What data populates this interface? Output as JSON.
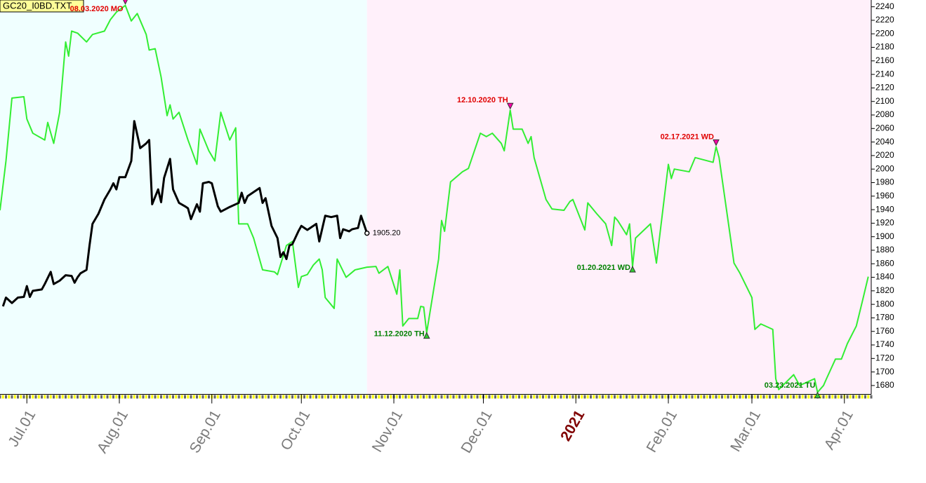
{
  "chart_data": {
    "type": "line",
    "title": "GC20_I0BD.TXT",
    "xlim": [
      "2020-06-22",
      "2021-04-10"
    ],
    "ylim": [
      1668,
      2250
    ],
    "xticks": [
      {
        "value": "2020-07-01",
        "label": "Jul.01"
      },
      {
        "value": "2020-08-01",
        "label": "Aug.01"
      },
      {
        "value": "2020-09-01",
        "label": "Sep.01"
      },
      {
        "value": "2020-10-01",
        "label": "Oct.01"
      },
      {
        "value": "2020-11-01",
        "label": "Nov.01"
      },
      {
        "value": "2020-12-01",
        "label": "Dec.01"
      },
      {
        "value": "2021-01-01",
        "label": "2021",
        "color": "#800000"
      },
      {
        "value": "2021-02-01",
        "label": "Feb.01"
      },
      {
        "value": "2021-03-01",
        "label": "Mar.01"
      },
      {
        "value": "2021-04-01",
        "label": "Apr.01"
      }
    ],
    "yticks": [
      1680,
      1700,
      1720,
      1740,
      1760,
      1780,
      1800,
      1820,
      1840,
      1860,
      1880,
      1900,
      1920,
      1940,
      1960,
      1980,
      2000,
      2020,
      2040,
      2060,
      2080,
      2100,
      2120,
      2140,
      2160,
      2180,
      2200,
      2220,
      2240
    ],
    "regions": [
      {
        "from": "2020-06-22",
        "to": "2020-10-23",
        "color": "#f0ffff"
      },
      {
        "from": "2020-10-23",
        "to": "2021-04-10",
        "color": "#fff0fa"
      }
    ],
    "series": [
      {
        "color": "#33ee33",
        "width": 2,
        "x": [
          "2020-06-22",
          "2020-06-24",
          "2020-06-26",
          "2020-06-30",
          "2020-07-01",
          "2020-07-03",
          "2020-07-07",
          "2020-07-08",
          "2020-07-10",
          "2020-07-12",
          "2020-07-14",
          "2020-07-15",
          "2020-07-16",
          "2020-07-18",
          "2020-07-21",
          "2020-07-23",
          "2020-07-27",
          "2020-07-29",
          "2020-07-31",
          "2020-08-03",
          "2020-08-05",
          "2020-08-07",
          "2020-08-10",
          "2020-08-11",
          "2020-08-13",
          "2020-08-15",
          "2020-08-17",
          "2020-08-18",
          "2020-08-19",
          "2020-08-21",
          "2020-08-24",
          "2020-08-27",
          "2020-08-28",
          "2020-08-31",
          "2020-09-02",
          "2020-09-04",
          "2020-09-07",
          "2020-09-09",
          "2020-09-10",
          "2020-09-13",
          "2020-09-15",
          "2020-09-18",
          "2020-09-22",
          "2020-09-23",
          "2020-09-26",
          "2020-09-28",
          "2020-09-30",
          "2020-10-01",
          "2020-10-03",
          "2020-10-05",
          "2020-10-07",
          "2020-10-08",
          "2020-10-09",
          "2020-10-12",
          "2020-10-13",
          "2020-10-16",
          "2020-10-19",
          "2020-10-23",
          "2020-10-26",
          "2020-10-27",
          "2020-10-30",
          "2020-11-02",
          "2020-11-03",
          "2020-11-04",
          "2020-11-06",
          "2020-11-09",
          "2020-11-10",
          "2020-11-11",
          "2020-11-12",
          "2020-11-16",
          "2020-11-17",
          "2020-11-18",
          "2020-11-20",
          "2020-11-24",
          "2020-11-26",
          "2020-11-30",
          "2020-12-02",
          "2020-12-04",
          "2020-12-07",
          "2020-12-08",
          "2020-12-10",
          "2020-12-11",
          "2020-12-14",
          "2020-12-16",
          "2020-12-17",
          "2020-12-18",
          "2020-12-22",
          "2020-12-24",
          "2020-12-28",
          "2020-12-30",
          "2020-12-31",
          "2021-01-04",
          "2021-01-05",
          "2021-01-08",
          "2021-01-11",
          "2021-01-13",
          "2021-01-14",
          "2021-01-15",
          "2021-01-18",
          "2021-01-19",
          "2021-01-20",
          "2021-01-21",
          "2021-01-26",
          "2021-01-28",
          "2021-02-01",
          "2021-02-02",
          "2021-02-03",
          "2021-02-08",
          "2021-02-10",
          "2021-02-16",
          "2021-02-17",
          "2021-02-18",
          "2021-02-22",
          "2021-02-23",
          "2021-02-25",
          "2021-03-01",
          "2021-03-02",
          "2021-03-04",
          "2021-03-08",
          "2021-03-09",
          "2021-03-10",
          "2021-03-15",
          "2021-03-17",
          "2021-03-22",
          "2021-03-23",
          "2021-03-25",
          "2021-03-26",
          "2021-03-29",
          "2021-03-31",
          "2021-04-02",
          "2021-04-05",
          "2021-04-07",
          "2021-04-09"
        ],
        "values": [
          1939,
          2012,
          2105,
          2107,
          2074,
          2053,
          2043,
          2069,
          2038,
          2084,
          2188,
          2167,
          2204,
          2201,
          2188,
          2199,
          2204,
          2221,
          2232,
          2242,
          2219,
          2230,
          2199,
          2176,
          2178,
          2136,
          2079,
          2095,
          2074,
          2084,
          2043,
          2007,
          2059,
          2027,
          2012,
          2084,
          2043,
          2061,
          1919,
          1919,
          1898,
          1851,
          1848,
          1844,
          1887,
          1893,
          1825,
          1841,
          1844,
          1858,
          1867,
          1851,
          1810,
          1794,
          1867,
          1840,
          1851,
          1855,
          1856,
          1846,
          1856,
          1815,
          1851,
          1768,
          1779,
          1779,
          1797,
          1796,
          1758,
          1867,
          1924,
          1908,
          1981,
          1996,
          2001,
          2053,
          2048,
          2053,
          2038,
          2027,
          2087,
          2059,
          2059,
          2038,
          2048,
          2017,
          1955,
          1941,
          1939,
          1952,
          1955,
          1910,
          1950,
          1934,
          1919,
          1887,
          1929,
          1924,
          1903,
          1919,
          1856,
          1898,
          1919,
          1861,
          2007,
          1986,
          2000,
          1996,
          2017,
          2010,
          2033,
          2017,
          1893,
          1861,
          1846,
          1810,
          1763,
          1771,
          1763,
          1690,
          1674,
          1696,
          1680,
          1690,
          1670,
          1680,
          1690,
          1719,
          1719,
          1742,
          1768,
          1804,
          1841
        ]
      },
      {
        "color": "#000000",
        "width": 3,
        "x": [
          "2020-06-23",
          "2020-06-24",
          "2020-06-26",
          "2020-06-28",
          "2020-06-30",
          "2020-07-01",
          "2020-07-02",
          "2020-07-03",
          "2020-07-06",
          "2020-07-07",
          "2020-07-09",
          "2020-07-10",
          "2020-07-12",
          "2020-07-14",
          "2020-07-16",
          "2020-07-17",
          "2020-07-18",
          "2020-07-19",
          "2020-07-21",
          "2020-07-22",
          "2020-07-23",
          "2020-07-25",
          "2020-07-27",
          "2020-07-29",
          "2020-07-30",
          "2020-07-31",
          "2020-08-01",
          "2020-08-03",
          "2020-08-05",
          "2020-08-06",
          "2020-08-08",
          "2020-08-10",
          "2020-08-11",
          "2020-08-12",
          "2020-08-14",
          "2020-08-15",
          "2020-08-16",
          "2020-08-18",
          "2020-08-19",
          "2020-08-21",
          "2020-08-23",
          "2020-08-24",
          "2020-08-25",
          "2020-08-27",
          "2020-08-28",
          "2020-08-29",
          "2020-08-31",
          "2020-09-01",
          "2020-09-03",
          "2020-09-04",
          "2020-09-07",
          "2020-09-10",
          "2020-09-11",
          "2020-09-12",
          "2020-09-13",
          "2020-09-17",
          "2020-09-18",
          "2020-09-19",
          "2020-09-21",
          "2020-09-23",
          "2020-09-24",
          "2020-09-25",
          "2020-09-26",
          "2020-09-27",
          "2020-09-28",
          "2020-09-30",
          "2020-10-01",
          "2020-10-03",
          "2020-10-06",
          "2020-10-07",
          "2020-10-09",
          "2020-10-11",
          "2020-10-13",
          "2020-10-14",
          "2020-10-15",
          "2020-10-17",
          "2020-10-18",
          "2020-10-20",
          "2020-10-21",
          "2020-10-23"
        ],
        "values": [
          1797,
          1810,
          1802,
          1810,
          1811,
          1827,
          1811,
          1820,
          1822,
          1830,
          1848,
          1830,
          1835,
          1843,
          1842,
          1832,
          1840,
          1846,
          1851,
          1887,
          1919,
          1934,
          1955,
          1970,
          1979,
          1970,
          1988,
          1988,
          2012,
          2071,
          2031,
          2038,
          2043,
          1948,
          1970,
          1951,
          1987,
          2015,
          1970,
          1950,
          1945,
          1942,
          1926,
          1948,
          1937,
          1979,
          1981,
          1979,
          1945,
          1937,
          1944,
          1950,
          1965,
          1950,
          1960,
          1972,
          1950,
          1957,
          1916,
          1898,
          1870,
          1877,
          1867,
          1887,
          1889,
          1908,
          1916,
          1910,
          1919,
          1893,
          1931,
          1929,
          1931,
          1898,
          1911,
          1908,
          1911,
          1913,
          1931,
          1905.2
        ],
        "value_labels": [
          null,
          null,
          null,
          null,
          null,
          null,
          null,
          null,
          null,
          null,
          null,
          null,
          null,
          null,
          null,
          null,
          null,
          null,
          null,
          null,
          null,
          null,
          null,
          null,
          null,
          null,
          null,
          null,
          null,
          null,
          null,
          null,
          null,
          null,
          null,
          null,
          null,
          null,
          null,
          null,
          null,
          null,
          null,
          null,
          null,
          null,
          null,
          null,
          null,
          null,
          null,
          null,
          null,
          null,
          null,
          null,
          null,
          null,
          null,
          null,
          null,
          null,
          null,
          null,
          null,
          null,
          null,
          null,
          null,
          null,
          null,
          null,
          null,
          null,
          null,
          null,
          null,
          null,
          null,
          "1905.20"
        ]
      }
    ],
    "annotations": [
      {
        "text": "08.03.2020 MO",
        "x": "2020-08-03",
        "kind": "high"
      },
      {
        "text": "11.12.2020 TH",
        "x": "2020-11-12",
        "kind": "low"
      },
      {
        "text": "12.10.2020 TH",
        "x": "2020-12-10",
        "kind": "high"
      },
      {
        "text": "01.20.2021 WD",
        "x": "2021-01-20",
        "kind": "low"
      },
      {
        "text": "02.17.2021 WD",
        "x": "2021-02-17",
        "kind": "high"
      },
      {
        "text": "03.23.2021 TU",
        "x": "2021-03-23",
        "kind": "low"
      }
    ]
  }
}
